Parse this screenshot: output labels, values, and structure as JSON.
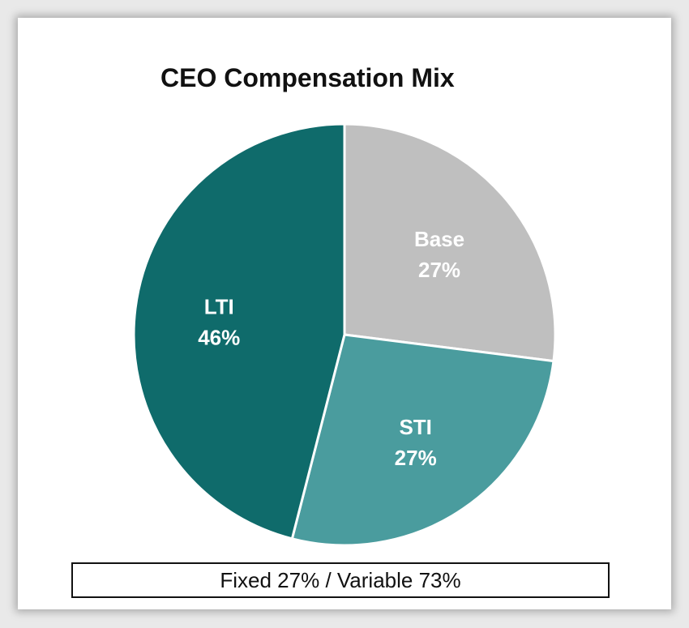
{
  "chart_data": {
    "type": "pie",
    "title": "CEO Compensation Mix",
    "slices": [
      {
        "name": "Base",
        "value": 27,
        "label": "27%",
        "color": "#bfbfbf"
      },
      {
        "name": "STI",
        "value": 27,
        "label": "27%",
        "color": "#4a9c9e"
      },
      {
        "name": "LTI",
        "value": 46,
        "label": "46%",
        "color": "#0f6b6b"
      }
    ],
    "start": "12 o'clock",
    "direction": "clockwise"
  },
  "summary": "Fixed 27% / Variable 73%"
}
